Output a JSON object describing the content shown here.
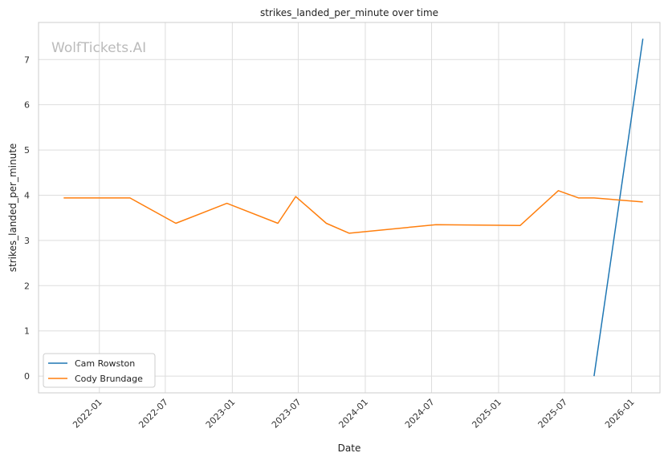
{
  "chart_data": {
    "type": "line",
    "title": "strikes_landed_per_minute over time",
    "xlabel": "Date",
    "ylabel": "strikes_landed_per_minute",
    "watermark": "WolfTickets.AI",
    "x_ticks": [
      "2022-01",
      "2022-07",
      "2023-01",
      "2023-07",
      "2024-01",
      "2024-07",
      "2025-01",
      "2025-07",
      "2026-01"
    ],
    "y_ticks": [
      0,
      1,
      2,
      3,
      4,
      5,
      6,
      7
    ],
    "ylim": [
      -0.37,
      7.82
    ],
    "xlim": [
      "2021-07-18",
      "2026-03-20"
    ],
    "grid": true,
    "legend_position": "bottom-left",
    "series": [
      {
        "name": "Cam Rowston",
        "color": "#1f77b4",
        "points": [
          {
            "x": "2025-09-20",
            "y": 0.0
          },
          {
            "x": "2026-02-01",
            "y": 7.46
          }
        ]
      },
      {
        "name": "Cody Brundage",
        "color": "#ff7f0e",
        "points": [
          {
            "x": "2021-09-25",
            "y": 3.94
          },
          {
            "x": "2022-03-26",
            "y": 3.94
          },
          {
            "x": "2022-07-30",
            "y": 3.38
          },
          {
            "x": "2022-12-17",
            "y": 3.82
          },
          {
            "x": "2023-05-06",
            "y": 3.38
          },
          {
            "x": "2023-06-24",
            "y": 3.97
          },
          {
            "x": "2023-09-16",
            "y": 3.38
          },
          {
            "x": "2023-11-18",
            "y": 3.16
          },
          {
            "x": "2024-07-13",
            "y": 3.35
          },
          {
            "x": "2025-03-01",
            "y": 3.33
          },
          {
            "x": "2025-06-14",
            "y": 4.1
          },
          {
            "x": "2025-08-09",
            "y": 3.94
          },
          {
            "x": "2025-09-20",
            "y": 3.94
          },
          {
            "x": "2026-02-01",
            "y": 3.85
          }
        ]
      }
    ]
  }
}
